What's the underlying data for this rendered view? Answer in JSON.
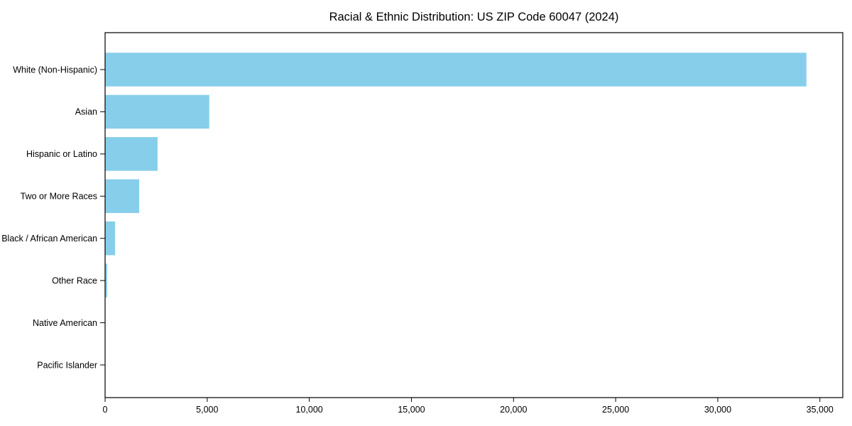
{
  "title": "Racial & Ethnic Distribution: US ZIP Code 60047 (2024)",
  "chart_data": {
    "type": "bar",
    "orientation": "horizontal",
    "title": "Racial & Ethnic Distribution: US ZIP Code 60047 (2024)",
    "categories": [
      "White (Non-Hispanic)",
      "Asian",
      "Hispanic or Latino",
      "Two or More Races",
      "Black / African American",
      "Other Race",
      "Native American",
      "Pacific Islander"
    ],
    "values": [
      34340,
      5100,
      2570,
      1670,
      490,
      100,
      0,
      0
    ],
    "xlabel": "",
    "ylabel": "",
    "x_ticks": [
      0,
      5000,
      10000,
      15000,
      20000,
      25000,
      30000,
      35000
    ],
    "x_tick_labels": [
      "0",
      "5,000",
      "10,000",
      "15,000",
      "20,000",
      "25,000",
      "30,000",
      "35,000"
    ],
    "xlim": [
      0,
      36120
    ],
    "bar_color": "#87CEEB",
    "axis_color": "#000000",
    "grid": false,
    "legend_position": "none"
  }
}
